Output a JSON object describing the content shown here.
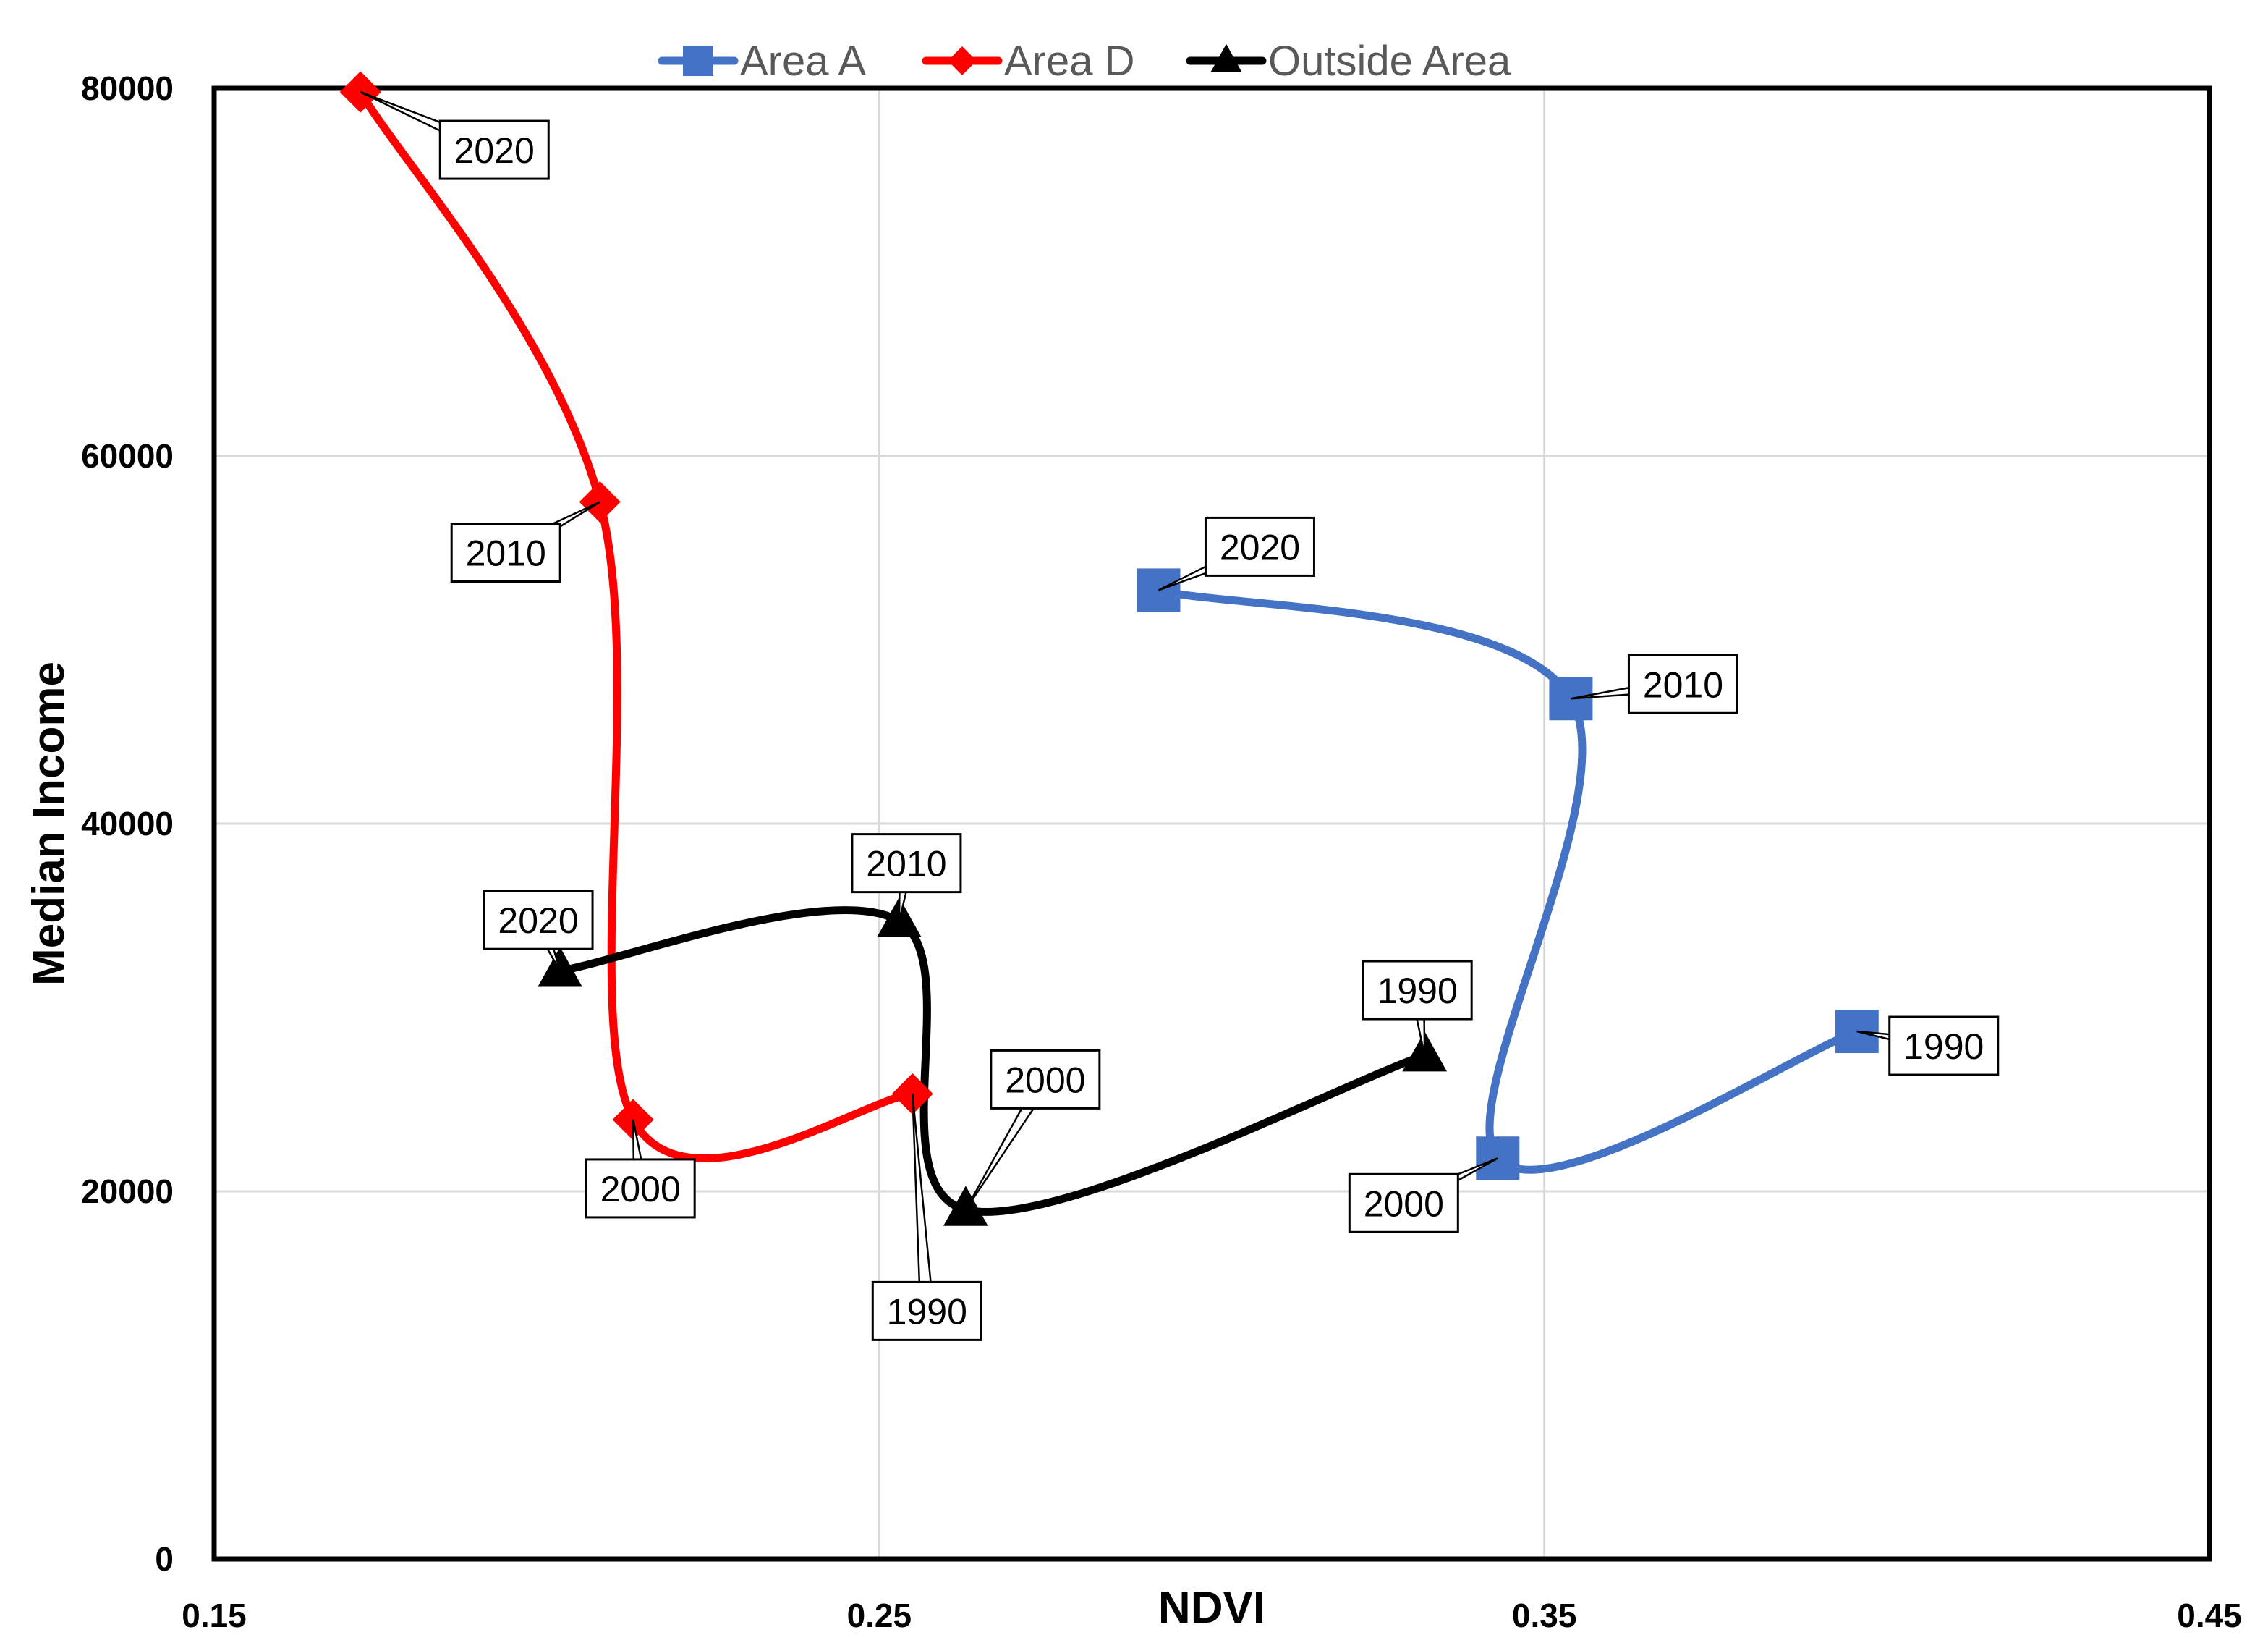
{
  "chart_data": {
    "type": "scatter",
    "xlabel": "NDVI",
    "ylabel": "Median Income",
    "xlim": [
      0.15,
      0.45
    ],
    "ylim": [
      0,
      80000
    ],
    "x_ticks": [
      "0.15",
      "0.25",
      "0.35",
      "0.45"
    ],
    "y_ticks": [
      "0",
      "20000",
      "40000",
      "60000",
      "80000"
    ],
    "grid": true,
    "legend_position": "top-center",
    "series": [
      {
        "name": "Area A",
        "color": "#4472C4",
        "marker": "square",
        "points": [
          {
            "label": "1990",
            "x": 0.397,
            "y": 28700
          },
          {
            "label": "2000",
            "x": 0.343,
            "y": 21800
          },
          {
            "label": "2010",
            "x": 0.354,
            "y": 46800
          },
          {
            "label": "2020",
            "x": 0.292,
            "y": 52700
          }
        ]
      },
      {
        "name": "Area D",
        "color": "#FF0000",
        "marker": "diamond",
        "points": [
          {
            "label": "1990",
            "x": 0.255,
            "y": 25300
          },
          {
            "label": "2000",
            "x": 0.213,
            "y": 23900
          },
          {
            "label": "2010",
            "x": 0.208,
            "y": 57500
          },
          {
            "label": "2020",
            "x": 0.172,
            "y": 79800
          }
        ]
      },
      {
        "name": "Outside Area",
        "color": "#000000",
        "marker": "triangle",
        "points": [
          {
            "label": "1990",
            "x": 0.332,
            "y": 27400
          },
          {
            "label": "2000",
            "x": 0.263,
            "y": 19000
          },
          {
            "label": "2010",
            "x": 0.253,
            "y": 34700
          },
          {
            "label": "2020",
            "x": 0.202,
            "y": 32000
          }
        ]
      }
    ]
  }
}
